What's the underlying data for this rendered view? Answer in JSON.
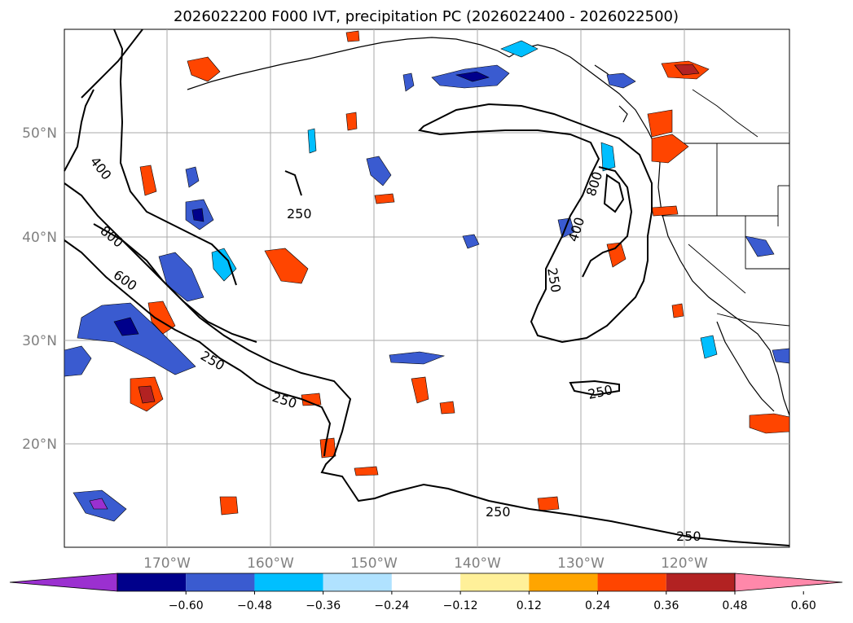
{
  "title": "2026022200 F000 IVT, precipitation PC (2026022400 - 2026022500)",
  "lat_labels": [
    "50°N",
    "40°N",
    "30°N",
    "20°N"
  ],
  "lon_labels": [
    "170°W",
    "160°W",
    "150°W",
    "140°W",
    "130°W",
    "120°W"
  ],
  "contour_labels": [
    "250",
    "400",
    "800",
    "600",
    "250",
    "250",
    "400",
    "800",
    "250",
    "250",
    "250"
  ],
  "colorbar": {
    "ticks": [
      "−0.60",
      "−0.48",
      "−0.36",
      "−0.24",
      "−0.12",
      "0.12",
      "0.24",
      "0.36",
      "0.48",
      "0.60"
    ],
    "colors": [
      "#9b30d0",
      "#00008b",
      "#3a5bd0",
      "#00bfff",
      "#b0e2ff",
      "#ffffff",
      "#fff099",
      "#ffa500",
      "#ff4500",
      "#b22222",
      "#ff88aa"
    ]
  }
}
